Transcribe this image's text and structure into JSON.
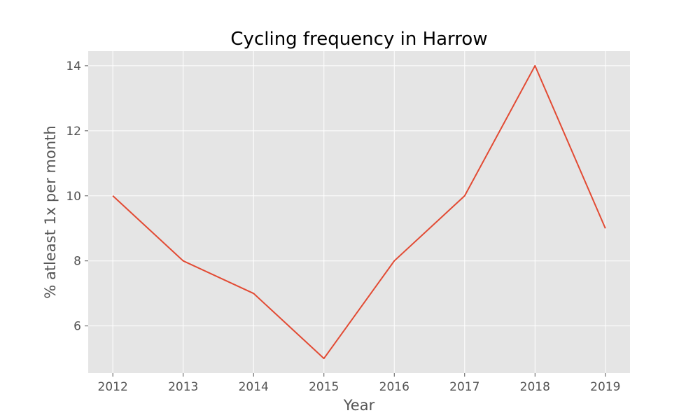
{
  "chart_data": {
    "type": "line",
    "title": "Cycling frequency in Harrow",
    "xlabel": "Year",
    "ylabel": "% atleast 1x per month",
    "x": [
      2012,
      2013,
      2014,
      2015,
      2016,
      2017,
      2018,
      2019
    ],
    "series": [
      {
        "values": [
          10,
          8,
          7,
          5,
          8,
          10,
          14,
          9
        ]
      }
    ],
    "xlim": [
      2011.65,
      2019.35
    ],
    "ylim": [
      4.55,
      14.45
    ],
    "xticks": [
      "2012",
      "2013",
      "2014",
      "2015",
      "2016",
      "2017",
      "2018",
      "2019"
    ],
    "yticks": [
      "6",
      "8",
      "10",
      "12",
      "14"
    ],
    "grid": true,
    "colors": {
      "line": "#E24A33",
      "plot_bg": "#E5E5E5",
      "grid": "#FFFFFF",
      "tick": "#555555"
    }
  }
}
